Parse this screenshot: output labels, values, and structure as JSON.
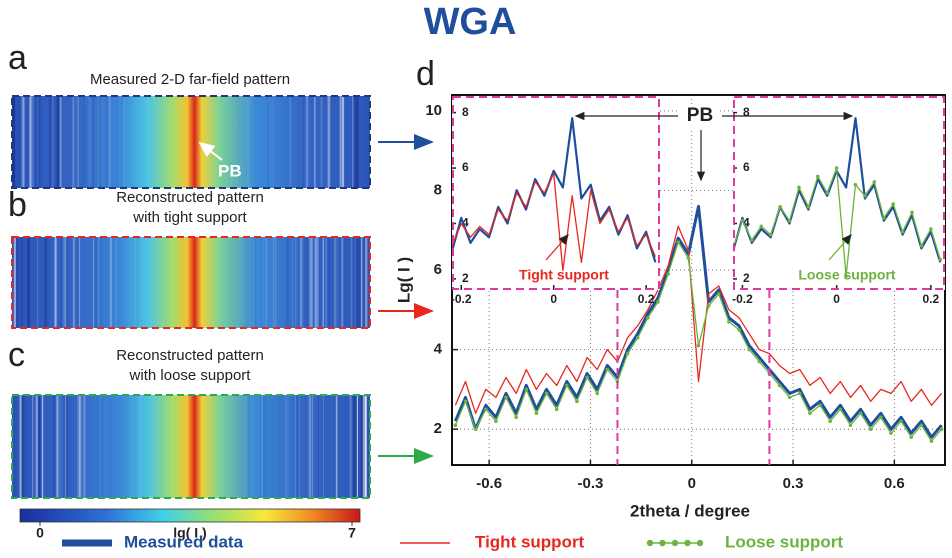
{
  "title": "WGA",
  "panels": [
    {
      "label": "a",
      "caption": [
        "Measured 2-D far-field pattern"
      ],
      "annotation": "PB"
    },
    {
      "label": "b",
      "caption": [
        "Reconstructed pattern",
        "with tight support"
      ]
    },
    {
      "label": "c",
      "caption": [
        "Reconstructed pattern",
        "with loose support"
      ]
    }
  ],
  "colorbar": {
    "label": "lg( I )",
    "lim": [
      0,
      7
    ],
    "ticks": [
      0,
      7
    ]
  },
  "chart_data": [
    {
      "type": "line",
      "panel_label": "d",
      "x_label": "2theta / degree",
      "y_label": "Lg( I )",
      "annotation": "PB",
      "xlim": [
        -0.71,
        0.75
      ],
      "ylim": [
        1.1,
        10.4
      ],
      "xticks": [
        -0.6,
        -0.3,
        0,
        0.3,
        0.6
      ],
      "yticks": [
        2,
        4,
        6,
        8,
        10
      ],
      "grid": true,
      "legend": "bottom",
      "x": [
        -0.7,
        -0.67,
        -0.64,
        -0.61,
        -0.58,
        -0.55,
        -0.52,
        -0.49,
        -0.46,
        -0.43,
        -0.4,
        -0.37,
        -0.34,
        -0.31,
        -0.28,
        -0.25,
        -0.22,
        -0.19,
        -0.16,
        -0.13,
        -0.1,
        -0.07,
        -0.04,
        -0.01,
        0.02,
        0.05,
        0.08,
        0.11,
        0.14,
        0.17,
        0.2,
        0.23,
        0.26,
        0.29,
        0.32,
        0.35,
        0.38,
        0.41,
        0.44,
        0.47,
        0.5,
        0.53,
        0.56,
        0.59,
        0.62,
        0.65,
        0.68,
        0.71,
        0.74
      ],
      "series": [
        {
          "name": "Measured data",
          "color": "#1f4e9c",
          "values": [
            2.2,
            2.8,
            2.0,
            2.6,
            2.3,
            2.9,
            2.4,
            3.1,
            2.5,
            3.0,
            2.6,
            3.2,
            2.8,
            3.4,
            3.0,
            3.6,
            3.3,
            4.0,
            4.4,
            4.9,
            5.3,
            6.0,
            6.8,
            6.4,
            7.6,
            5.2,
            5.5,
            4.8,
            4.6,
            4.1,
            3.8,
            3.5,
            3.2,
            2.9,
            3.0,
            2.5,
            2.7,
            2.3,
            2.6,
            2.2,
            2.5,
            2.1,
            2.4,
            2.0,
            2.3,
            1.9,
            2.2,
            1.8,
            2.1
          ]
        },
        {
          "name": "Tight support",
          "color": "#e8281e",
          "values": [
            2.6,
            3.2,
            2.4,
            3.0,
            2.8,
            3.3,
            2.9,
            3.5,
            3.0,
            3.4,
            3.1,
            3.6,
            3.2,
            3.8,
            3.5,
            4.0,
            3.7,
            4.3,
            4.6,
            5.0,
            5.5,
            6.1,
            7.1,
            6.5,
            3.2,
            5.4,
            5.6,
            5.0,
            4.8,
            4.4,
            4.0,
            3.9,
            3.6,
            3.4,
            3.5,
            3.1,
            3.3,
            2.9,
            3.2,
            2.8,
            3.1,
            2.7,
            3.0,
            2.9,
            3.2,
            2.7,
            3.0,
            2.6,
            2.9
          ]
        },
        {
          "name": "Loose support",
          "color": "#6cb33f",
          "marker": "circle",
          "values": [
            2.1,
            2.7,
            2.0,
            2.5,
            2.2,
            2.8,
            2.3,
            3.0,
            2.4,
            2.9,
            2.5,
            3.1,
            2.7,
            3.3,
            2.9,
            3.5,
            3.2,
            3.9,
            4.3,
            4.8,
            5.2,
            5.9,
            6.7,
            6.3,
            4.1,
            5.1,
            5.4,
            4.7,
            4.5,
            4.0,
            3.7,
            3.4,
            3.1,
            2.8,
            2.9,
            2.4,
            2.6,
            2.2,
            2.5,
            2.1,
            2.4,
            2.0,
            2.3,
            1.9,
            2.2,
            1.8,
            2.1,
            1.7,
            2.0
          ]
        }
      ]
    },
    {
      "type": "line",
      "annotation": {
        "text": "Tight support",
        "color": "#e8281e"
      },
      "xlim": [
        -0.22,
        0.23
      ],
      "ylim": [
        1.6,
        8.6
      ],
      "xticks": [
        -0.2,
        0,
        0.2
      ],
      "yticks": [
        2,
        4,
        6,
        8
      ],
      "grid": false,
      "x": [
        -0.22,
        -0.2,
        -0.18,
        -0.16,
        -0.14,
        -0.12,
        -0.1,
        -0.08,
        -0.06,
        -0.04,
        -0.02,
        0.0,
        0.02,
        0.04,
        0.06,
        0.08,
        0.1,
        0.12,
        0.14,
        0.16,
        0.18,
        0.2,
        0.22
      ],
      "series": [
        {
          "name": "Measured data",
          "color": "#1f4e9c",
          "values": [
            3.0,
            4.2,
            3.3,
            3.8,
            3.5,
            4.6,
            4.0,
            5.2,
            4.5,
            5.6,
            5.0,
            5.9,
            5.3,
            7.8,
            4.9,
            5.4,
            4.1,
            4.6,
            3.6,
            4.3,
            3.1,
            3.7,
            2.6
          ]
        },
        {
          "name": "Tight support",
          "color": "#e8281e",
          "values": [
            3.2,
            4.0,
            3.5,
            3.9,
            3.6,
            4.5,
            4.1,
            5.1,
            4.6,
            5.5,
            5.1,
            5.8,
            2.3,
            5.0,
            2.6,
            5.2,
            4.0,
            4.5,
            3.7,
            4.2,
            3.2,
            3.6,
            2.8
          ]
        }
      ]
    },
    {
      "type": "line",
      "annotation": {
        "text": "Loose support",
        "color": "#6cb33f"
      },
      "xlim": [
        -0.22,
        0.23
      ],
      "ylim": [
        1.6,
        8.6
      ],
      "xticks": [
        -0.2,
        0,
        0.2
      ],
      "yticks": [
        2,
        4,
        6,
        8
      ],
      "grid": false,
      "x": [
        -0.22,
        -0.2,
        -0.18,
        -0.16,
        -0.14,
        -0.12,
        -0.1,
        -0.08,
        -0.06,
        -0.04,
        -0.02,
        0.0,
        0.02,
        0.04,
        0.06,
        0.08,
        0.1,
        0.12,
        0.14,
        0.16,
        0.18,
        0.2,
        0.22
      ],
      "series": [
        {
          "name": "Measured data",
          "color": "#1f4e9c",
          "values": [
            3.0,
            4.2,
            3.3,
            3.8,
            3.5,
            4.6,
            4.0,
            5.2,
            4.5,
            5.6,
            5.0,
            5.9,
            5.3,
            7.8,
            4.9,
            5.4,
            4.1,
            4.6,
            3.6,
            4.3,
            3.1,
            3.7,
            2.6
          ]
        },
        {
          "name": "Loose support",
          "color": "#6cb33f",
          "marker": "circle",
          "values": [
            3.1,
            4.1,
            3.4,
            3.9,
            3.6,
            4.6,
            4.1,
            5.3,
            4.6,
            5.7,
            5.1,
            6.0,
            2.1,
            5.4,
            5.0,
            5.5,
            4.2,
            4.7,
            3.7,
            4.4,
            3.2,
            3.8,
            2.7
          ]
        }
      ]
    }
  ]
}
